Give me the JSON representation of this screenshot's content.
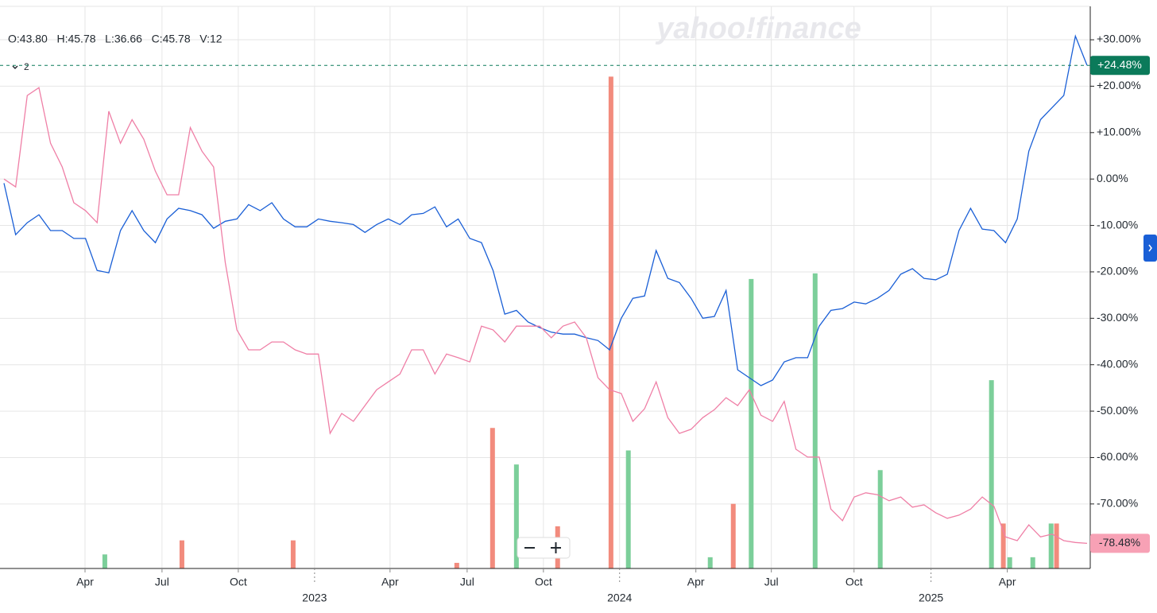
{
  "chart_data": {
    "type": "line",
    "info": "O:43.80   H:45.78   L:36.66   C:45.78   V:12",
    "compare_count": "2",
    "watermark": "yahoo!finance",
    "xlim": [
      0,
      93
    ],
    "xticks": [
      {
        "value": 6.96,
        "label": "Apr"
      },
      {
        "value": 13.57,
        "label": "Jul"
      },
      {
        "value": 20.12,
        "label": "Oct"
      },
      {
        "value": 26.67,
        "label": "2023"
      },
      {
        "value": 33.15,
        "label": "Apr"
      },
      {
        "value": 39.77,
        "label": "Jul"
      },
      {
        "value": 46.32,
        "label": "Oct"
      },
      {
        "value": 52.86,
        "label": "2024"
      },
      {
        "value": 59.41,
        "label": "Apr"
      },
      {
        "value": 65.89,
        "label": "Jul"
      },
      {
        "value": 72.99,
        "label": "Oct"
      },
      {
        "value": 79.6,
        "label": "2025"
      },
      {
        "value": 86.15,
        "label": "Apr"
      }
    ],
    "ylim": [
      -83.9,
      37.2
    ],
    "yticks": [
      {
        "value": 30,
        "label": "+30.00%"
      },
      {
        "value": 20,
        "label": "+20.00%"
      },
      {
        "value": 10,
        "label": "+10.00%"
      },
      {
        "value": 0,
        "label": "0.00%"
      },
      {
        "value": -10,
        "label": "-10.00%"
      },
      {
        "value": -20,
        "label": "-20.00%"
      },
      {
        "value": -30,
        "label": "-30.00%"
      },
      {
        "value": -40,
        "label": "-40.00%"
      },
      {
        "value": -50,
        "label": "-50.00%"
      },
      {
        "value": -60,
        "label": "-60.00%"
      },
      {
        "value": -70,
        "label": "-70.00%"
      }
    ],
    "grid": true,
    "series": [
      {
        "color": "#1a5fd6",
        "end_label": "+24.48%",
        "label_color": "#0b7a5a",
        "values": [
          -0.9,
          -12.0,
          -9.4,
          -7.7,
          -11.1,
          -11.1,
          -12.8,
          -12.8,
          -19.7,
          -20.2,
          -11.1,
          -6.8,
          -11.1,
          -13.7,
          -8.6,
          -6.3,
          -6.8,
          -7.7,
          -10.6,
          -9.1,
          -8.6,
          -5.5,
          -6.8,
          -5.1,
          -8.6,
          -10.3,
          -10.3,
          -8.6,
          -9.1,
          -9.4,
          -9.8,
          -11.5,
          -9.8,
          -8.6,
          -9.8,
          -7.7,
          -7.4,
          -6.0,
          -10.3,
          -8.6,
          -12.8,
          -13.7,
          -19.7,
          -29.1,
          -28.3,
          -30.8,
          -32.0,
          -33.0,
          -33.4,
          -33.4,
          -34.2,
          -34.8,
          -36.8,
          -30.0,
          -25.7,
          -25.2,
          -15.4,
          -21.4,
          -22.3,
          -25.7,
          -30.0,
          -29.6,
          -24.0,
          -41.1,
          -42.8,
          -44.5,
          -43.3,
          -39.4,
          -38.5,
          -38.5,
          -31.7,
          -28.3,
          -27.9,
          -26.5,
          -26.9,
          -25.7,
          -24.0,
          -20.5,
          -19.3,
          -21.4,
          -21.7,
          -20.5,
          -11.1,
          -6.3,
          -10.8,
          -11.1,
          -13.7,
          -8.6,
          6.0,
          12.8,
          15.4,
          18.0,
          30.8,
          24.48
        ]
      },
      {
        "color": "#ef7fa6",
        "end_label": "-78.48%",
        "label_color": "#f7a1b5",
        "values": [
          0,
          -1.7,
          18.0,
          19.7,
          7.7,
          2.6,
          -5.1,
          -6.8,
          -9.4,
          14.6,
          7.7,
          12.8,
          8.6,
          1.7,
          -3.4,
          -3.4,
          11.1,
          6.0,
          2.6,
          -18.0,
          -32.5,
          -36.8,
          -36.8,
          -35.1,
          -35.1,
          -36.8,
          -37.7,
          -37.7,
          -54.8,
          -50.5,
          -52.2,
          -48.8,
          -45.4,
          -43.7,
          -42.0,
          -36.8,
          -36.8,
          -42.0,
          -37.7,
          -38.5,
          -39.4,
          -31.7,
          -32.5,
          -35.1,
          -31.7,
          -31.7,
          -31.7,
          -34.2,
          -31.7,
          -30.8,
          -34.2,
          -42.8,
          -45.4,
          -46.2,
          -52.2,
          -49.5,
          -43.7,
          -51.4,
          -54.8,
          -53.9,
          -51.4,
          -49.7,
          -47.1,
          -48.8,
          -45.4,
          -50.9,
          -52.2,
          -47.9,
          -58.2,
          -59.9,
          -59.9,
          -71.1,
          -73.6,
          -68.5,
          -67.6,
          -68.0,
          -69.3,
          -68.5,
          -70.7,
          -70.2,
          -71.9,
          -73.1,
          -72.4,
          -71.1,
          -68.5,
          -70.5,
          -77.1,
          -77.9,
          -74.5,
          -77.1,
          -76.5,
          -77.9,
          -78.3,
          -78.48
        ]
      }
    ],
    "volume": {
      "ylim": [
        0,
        200
      ],
      "x": [
        8.66,
        15.28,
        24.83,
        38.88,
        41.95,
        44.0,
        47.54,
        52.12,
        53.61,
        60.64,
        62.62,
        64.16,
        69.65,
        75.24,
        84.79,
        85.81,
        86.36,
        88.34,
        89.91,
        90.38
      ],
      "values": [
        5,
        10,
        10,
        2,
        50,
        37,
        15,
        175,
        42,
        4,
        23,
        103,
        105,
        35,
        67,
        16,
        4,
        4,
        16,
        16
      ],
      "colors": [
        "#7ccf9a",
        "#f28b7d",
        "#f28b7d",
        "#f28b7d",
        "#f28b7d",
        "#7ccf9a",
        "#f28b7d",
        "#f28b7d",
        "#7ccf9a",
        "#7ccf9a",
        "#f28b7d",
        "#7ccf9a",
        "#7ccf9a",
        "#7ccf9a",
        "#7ccf9a",
        "#f28b7d",
        "#7ccf9a",
        "#7ccf9a",
        "#7ccf9a",
        "#f28b7d"
      ]
    }
  }
}
